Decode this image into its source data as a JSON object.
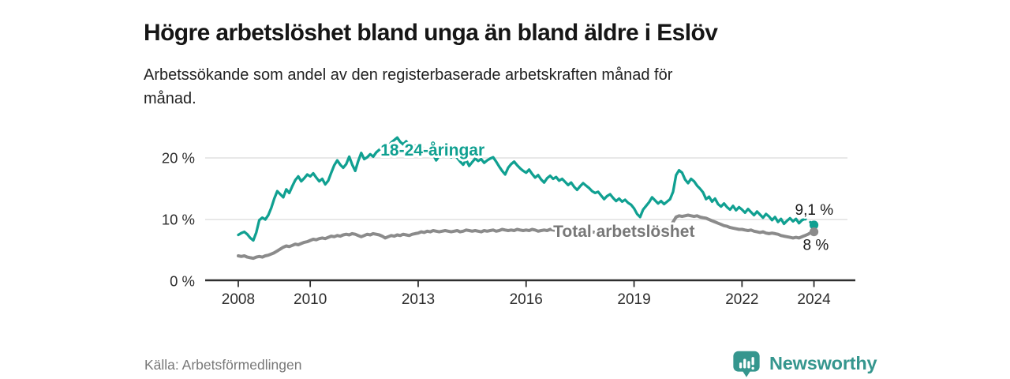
{
  "header": {
    "title": "Högre arbetslöshet bland unga än bland äldre i Eslöv",
    "subtitle_lines": [
      "Arbetssökande som andel av den registerbaserade arbetskraften månad för",
      "månad."
    ]
  },
  "footer": {
    "source": "Källa: Arbetsförmedlingen",
    "brand_name": "Newsworthy",
    "brand_icon": "bar-chart-speech-bubble"
  },
  "colors": {
    "youth": "#10a091",
    "total": "#8b8b8b",
    "total_label": "#787878",
    "axis": "#2e2e2e",
    "grid": "#d9d9d9",
    "annotation": "#171717",
    "brand": "#35968e"
  },
  "chart_data": {
    "type": "line",
    "title": "Högre arbetslöshet bland unga än bland äldre i Eslöv",
    "xlabel": "",
    "ylabel": "%",
    "grid": "horizontal",
    "legend_position": "inline-labels",
    "x_start": 2008,
    "x_step_months": 1,
    "xlim": [
      2007.08,
      2025.15
    ],
    "ylim": [
      0,
      24.1
    ],
    "x_ticks": [
      2008,
      2010,
      2013,
      2016,
      2019,
      2022,
      2024
    ],
    "y_ticks": [
      {
        "value": 0,
        "label": "0 %"
      },
      {
        "value": 10,
        "label": "10 %"
      },
      {
        "value": 20,
        "label": "20 %"
      }
    ],
    "series": [
      {
        "name": "18-24-åringar",
        "color_key": "youth",
        "label_pos": {
          "x": 2013.4,
          "y": 21.3
        },
        "end_label": "9,1 %",
        "end_value": 9.1,
        "dashed_tail_points": 5,
        "values": [
          7.5,
          7.8,
          8.0,
          7.6,
          7.0,
          6.6,
          7.9,
          9.9,
          10.3,
          10.0,
          10.7,
          11.9,
          13.4,
          14.6,
          14.1,
          13.6,
          14.9,
          14.3,
          15.4,
          16.4,
          17.0,
          16.2,
          16.7,
          17.3,
          17.0,
          17.5,
          16.8,
          16.2,
          16.6,
          15.7,
          16.3,
          17.6,
          18.8,
          19.6,
          18.9,
          18.4,
          19.0,
          20.2,
          18.9,
          17.9,
          19.5,
          20.8,
          19.8,
          20.1,
          20.6,
          20.2,
          20.9,
          21.3,
          21.8,
          22.3,
          21.9,
          22.5,
          22.9,
          23.3,
          22.6,
          22.2,
          22.7,
          22.1,
          21.8,
          22.0,
          21.6,
          21.9,
          21.3,
          20.8,
          21.1,
          20.5,
          19.6,
          20.3,
          20.8,
          20.2,
          20.6,
          20.1,
          20.5,
          20.0,
          19.4,
          18.9,
          19.7,
          18.7,
          19.3,
          19.9,
          19.5,
          19.8,
          19.2,
          19.6,
          19.9,
          20.1,
          19.4,
          18.6,
          17.9,
          17.3,
          18.4,
          19.0,
          19.4,
          18.8,
          18.3,
          17.9,
          17.6,
          18.1,
          17.4,
          16.8,
          17.2,
          16.5,
          16.0,
          16.7,
          17.1,
          16.6,
          16.9,
          16.3,
          16.6,
          16.1,
          15.6,
          16.0,
          15.3,
          14.8,
          15.4,
          15.9,
          15.5,
          15.1,
          14.6,
          14.3,
          14.5,
          13.9,
          13.3,
          13.8,
          14.1,
          13.5,
          13.0,
          13.4,
          12.9,
          13.2,
          12.7,
          12.4,
          11.8,
          10.9,
          10.4,
          11.6,
          12.2,
          12.8,
          13.6,
          13.1,
          12.6,
          13.0,
          12.5,
          12.9,
          13.3,
          14.5,
          17.2,
          18.0,
          17.6,
          16.5,
          15.9,
          16.6,
          16.2,
          15.5,
          15.0,
          14.4,
          13.3,
          13.7,
          12.9,
          13.4,
          12.5,
          12.1,
          12.6,
          12.0,
          11.6,
          12.2,
          11.5,
          12.0,
          11.6,
          11.1,
          11.7,
          11.2,
          10.7,
          11.3,
          10.8,
          10.3,
          10.9,
          10.5,
          9.9,
          10.4,
          9.6,
          10.1,
          9.3,
          9.8,
          10.2,
          9.7,
          10.1,
          9.4,
          9.9,
          10.1,
          9.8,
          9.5,
          9.1
        ]
      },
      {
        "name": "Total arbetslöshet",
        "color_key": "total",
        "label_color_key": "total_label",
        "label_pos": {
          "x": 2018.72,
          "y": 8.1
        },
        "end_label": "8 %",
        "end_value": 8.0,
        "dashed_tail_points": 0,
        "values": [
          4.1,
          4.0,
          4.1,
          3.9,
          3.8,
          3.7,
          3.9,
          4.0,
          3.9,
          4.1,
          4.2,
          4.4,
          4.6,
          4.9,
          5.2,
          5.5,
          5.7,
          5.6,
          5.8,
          6.0,
          5.9,
          6.1,
          6.3,
          6.4,
          6.6,
          6.8,
          6.7,
          6.9,
          7.0,
          6.9,
          7.1,
          7.3,
          7.2,
          7.4,
          7.3,
          7.5,
          7.6,
          7.5,
          7.7,
          7.6,
          7.4,
          7.2,
          7.4,
          7.6,
          7.5,
          7.7,
          7.6,
          7.5,
          7.3,
          7.0,
          7.2,
          7.4,
          7.3,
          7.5,
          7.4,
          7.6,
          7.5,
          7.4,
          7.6,
          7.7,
          7.8,
          8.0,
          7.9,
          8.1,
          8.0,
          8.2,
          8.1,
          8.0,
          8.1,
          8.2,
          8.1,
          8.0,
          8.1,
          8.2,
          8.0,
          8.1,
          8.3,
          8.2,
          8.1,
          8.2,
          8.1,
          8.0,
          8.2,
          8.1,
          8.2,
          8.3,
          8.1,
          8.2,
          8.4,
          8.3,
          8.2,
          8.3,
          8.2,
          8.4,
          8.3,
          8.2,
          8.3,
          8.2,
          8.4,
          8.3,
          8.1,
          8.2,
          8.3,
          8.2,
          8.4,
          8.3,
          8.2,
          8.1,
          8.2,
          8.0,
          8.1,
          8.2,
          8.1,
          8.0,
          8.1,
          8.2,
          8.0,
          8.1,
          8.0,
          7.9,
          8.0,
          7.9,
          8.1,
          8.0,
          7.8,
          7.9,
          8.0,
          7.9,
          8.1,
          8.0,
          8.1,
          8.2,
          8.2,
          8.3,
          8.2,
          8.4,
          8.3,
          8.4,
          8.5,
          8.4,
          8.5,
          8.6,
          8.5,
          8.6,
          8.8,
          9.6,
          10.4,
          10.6,
          10.5,
          10.6,
          10.7,
          10.6,
          10.5,
          10.6,
          10.4,
          10.3,
          10.2,
          10.0,
          9.8,
          9.6,
          9.4,
          9.2,
          9.0,
          8.9,
          8.7,
          8.6,
          8.5,
          8.4,
          8.4,
          8.3,
          8.2,
          8.3,
          8.1,
          8.0,
          7.9,
          8.0,
          7.8,
          7.7,
          7.8,
          7.7,
          7.6,
          7.4,
          7.3,
          7.2,
          7.1,
          7.0,
          7.1,
          7.0,
          7.2,
          7.4,
          7.6,
          7.9,
          8.0
        ]
      }
    ]
  }
}
